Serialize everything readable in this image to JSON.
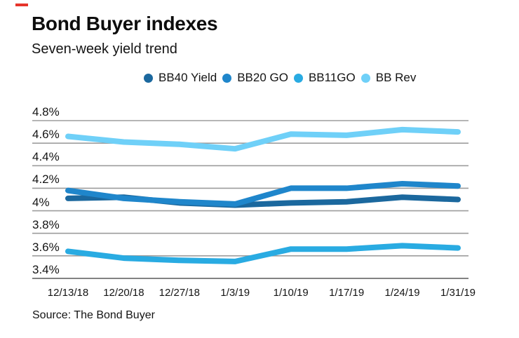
{
  "brand": {
    "dash_color": "#e6342b"
  },
  "header": {
    "title": "Bond Buyer indexes",
    "subtitle": "Seven-week yield trend"
  },
  "footer": {
    "source": "Source: The Bond Buyer"
  },
  "chart_data": {
    "type": "line",
    "title": "Bond Buyer indexes",
    "subtitle": "Seven-week yield trend",
    "categories": [
      "12/13/18",
      "12/20/18",
      "12/27/18",
      "1/3/19",
      "1/10/19",
      "1/17/19",
      "1/24/19",
      "1/31/19"
    ],
    "series": [
      {
        "name": "BB40 Yield",
        "color": "#1b689e",
        "values": [
          4.11,
          4.12,
          4.07,
          4.05,
          4.07,
          4.08,
          4.12,
          4.1
        ]
      },
      {
        "name": "BB20 GO",
        "color": "#1f86cb",
        "values": [
          4.18,
          4.11,
          4.08,
          4.06,
          4.2,
          4.2,
          4.24,
          4.22
        ]
      },
      {
        "name": "BB11GO",
        "color": "#29abe2",
        "values": [
          3.64,
          3.58,
          3.56,
          3.55,
          3.66,
          3.66,
          3.69,
          3.67
        ]
      },
      {
        "name": "BB Rev",
        "color": "#6fd0f8",
        "values": [
          4.66,
          4.61,
          4.59,
          4.55,
          4.68,
          4.67,
          4.72,
          4.7
        ]
      }
    ],
    "ylabel": "",
    "xlabel": "",
    "ylim": [
      3.4,
      4.8
    ],
    "yticks": [
      {
        "value": 4.8,
        "label": "4.8%"
      },
      {
        "value": 4.6,
        "label": "4.6%"
      },
      {
        "value": 4.4,
        "label": "4.4%"
      },
      {
        "value": 4.2,
        "label": "4.2%"
      },
      {
        "value": 4.0,
        "label": "4%"
      },
      {
        "value": 3.8,
        "label": "3.8%"
      },
      {
        "value": 3.6,
        "label": "3.6%"
      },
      {
        "value": 3.4,
        "label": "3.4%"
      }
    ],
    "grid": true,
    "grid_color": "#9d9d9d",
    "legend_position": "top",
    "source": "Source: The Bond Buyer"
  }
}
